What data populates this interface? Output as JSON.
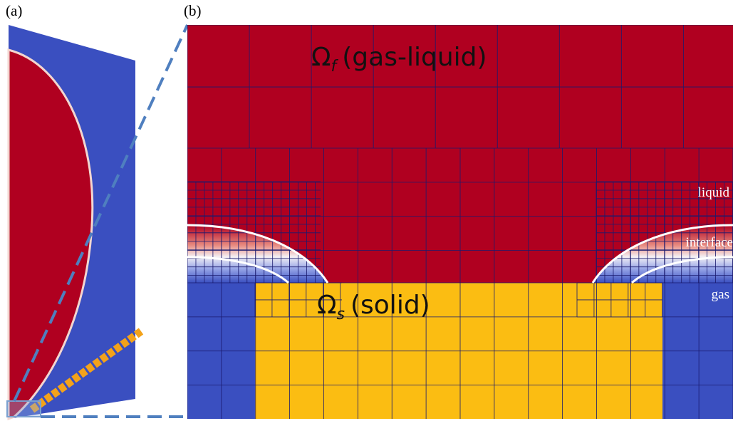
{
  "panels": {
    "a": {
      "label": "(a)"
    },
    "b": {
      "label": "(b)"
    }
  },
  "labels": {
    "fluid_domain": {
      "symbol": "Ω",
      "subscript": "f",
      "text": "(gas-liquid)"
    },
    "solid_domain": {
      "symbol": "Ω",
      "subscript": "s",
      "text": "(solid)"
    },
    "liquid": "liquid",
    "interface": "interface",
    "gas": "gas"
  }
}
